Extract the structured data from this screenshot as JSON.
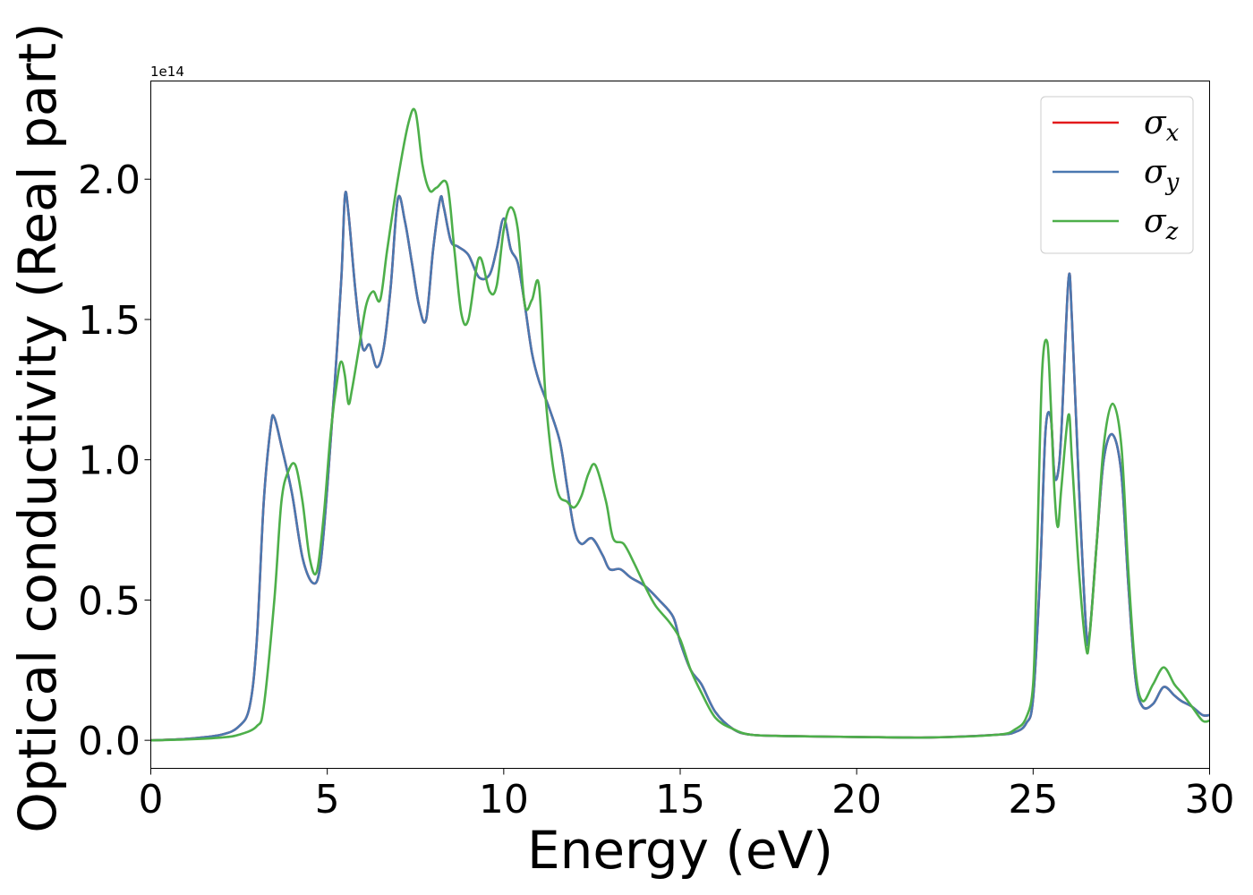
{
  "chart_data": {
    "type": "line",
    "xlabel": "Energy (eV)",
    "ylabel": "Optical conductivity (Real part)",
    "offset_text": "1e14",
    "xlim": [
      0,
      30
    ],
    "ylim": [
      -0.1,
      2.35
    ],
    "y_scale_factor": "1e14",
    "xticks": [
      0,
      5,
      10,
      15,
      20,
      25,
      30
    ],
    "xtick_labels": [
      "0",
      "5",
      "10",
      "15",
      "20",
      "25",
      "30"
    ],
    "yticks": [
      0.0,
      0.5,
      1.0,
      1.5,
      2.0
    ],
    "ytick_labels": [
      "0.0",
      "0.5",
      "1.0",
      "1.5",
      "2.0"
    ],
    "grid": false,
    "legend_position": "top-right",
    "series": [
      {
        "name": "σx",
        "legend_base": "σ",
        "legend_sub": "x",
        "color": "#e31a1c",
        "x": [
          0,
          1,
          2,
          2.5,
          2.8,
          3.0,
          3.2,
          3.4,
          3.5,
          3.7,
          4.0,
          4.3,
          4.6,
          4.8,
          5.0,
          5.2,
          5.4,
          5.5,
          5.6,
          5.8,
          6.0,
          6.2,
          6.4,
          6.6,
          6.8,
          7.0,
          7.2,
          7.4,
          7.6,
          7.8,
          8.0,
          8.2,
          8.3,
          8.5,
          8.7,
          9.0,
          9.3,
          9.6,
          9.8,
          10.0,
          10.2,
          10.4,
          10.6,
          10.8,
          11.0,
          11.3,
          11.6,
          11.8,
          12.0,
          12.2,
          12.5,
          12.8,
          13.0,
          13.3,
          13.6,
          14.0,
          14.4,
          14.8,
          15.0,
          15.3,
          15.6,
          16.0,
          16.5,
          17.0,
          18.0,
          20.0,
          22.0,
          24.0,
          24.5,
          24.8,
          25.0,
          25.2,
          25.35,
          25.5,
          25.6,
          25.7,
          25.8,
          26.0,
          26.1,
          26.3,
          26.5,
          26.6,
          26.8,
          27.0,
          27.25,
          27.5,
          27.7,
          27.9,
          28.1,
          28.4,
          28.7,
          29.0,
          29.2,
          29.5,
          29.8,
          30.0
        ],
        "values": [
          0.0,
          0.005,
          0.02,
          0.05,
          0.12,
          0.35,
          0.85,
          1.12,
          1.15,
          1.05,
          0.88,
          0.65,
          0.56,
          0.62,
          0.9,
          1.25,
          1.65,
          1.94,
          1.88,
          1.6,
          1.4,
          1.41,
          1.33,
          1.4,
          1.62,
          1.93,
          1.85,
          1.7,
          1.55,
          1.5,
          1.75,
          1.93,
          1.9,
          1.78,
          1.76,
          1.73,
          1.65,
          1.66,
          1.75,
          1.86,
          1.75,
          1.7,
          1.55,
          1.38,
          1.28,
          1.18,
          1.06,
          0.9,
          0.75,
          0.7,
          0.72,
          0.66,
          0.61,
          0.61,
          0.58,
          0.55,
          0.5,
          0.44,
          0.35,
          0.25,
          0.2,
          0.1,
          0.04,
          0.02,
          0.015,
          0.012,
          0.01,
          0.02,
          0.03,
          0.06,
          0.15,
          0.6,
          1.1,
          1.15,
          0.95,
          0.95,
          1.1,
          1.64,
          1.5,
          0.9,
          0.4,
          0.38,
          0.7,
          1.0,
          1.09,
          0.95,
          0.55,
          0.22,
          0.12,
          0.13,
          0.19,
          0.16,
          0.14,
          0.12,
          0.09,
          0.09
        ]
      },
      {
        "name": "σy",
        "legend_base": "σ",
        "legend_sub": "y",
        "color": "#4a78b0",
        "x": [
          0,
          1,
          2,
          2.5,
          2.8,
          3.0,
          3.2,
          3.4,
          3.5,
          3.7,
          4.0,
          4.3,
          4.6,
          4.8,
          5.0,
          5.2,
          5.4,
          5.5,
          5.6,
          5.8,
          6.0,
          6.2,
          6.4,
          6.6,
          6.8,
          7.0,
          7.2,
          7.4,
          7.6,
          7.8,
          8.0,
          8.2,
          8.3,
          8.5,
          8.7,
          9.0,
          9.3,
          9.6,
          9.8,
          10.0,
          10.2,
          10.4,
          10.6,
          10.8,
          11.0,
          11.3,
          11.6,
          11.8,
          12.0,
          12.2,
          12.5,
          12.8,
          13.0,
          13.3,
          13.6,
          14.0,
          14.4,
          14.8,
          15.0,
          15.3,
          15.6,
          16.0,
          16.5,
          17.0,
          18.0,
          20.0,
          22.0,
          24.0,
          24.5,
          24.8,
          25.0,
          25.2,
          25.35,
          25.5,
          25.6,
          25.7,
          25.8,
          26.0,
          26.1,
          26.3,
          26.5,
          26.6,
          26.8,
          27.0,
          27.25,
          27.5,
          27.7,
          27.9,
          28.1,
          28.4,
          28.7,
          29.0,
          29.2,
          29.5,
          29.8,
          30.0
        ],
        "values": [
          0.0,
          0.005,
          0.02,
          0.05,
          0.12,
          0.35,
          0.85,
          1.12,
          1.15,
          1.05,
          0.88,
          0.65,
          0.56,
          0.62,
          0.9,
          1.25,
          1.65,
          1.94,
          1.88,
          1.6,
          1.4,
          1.41,
          1.33,
          1.4,
          1.62,
          1.93,
          1.85,
          1.7,
          1.55,
          1.5,
          1.75,
          1.93,
          1.9,
          1.78,
          1.76,
          1.73,
          1.65,
          1.66,
          1.75,
          1.86,
          1.75,
          1.7,
          1.55,
          1.38,
          1.28,
          1.18,
          1.06,
          0.9,
          0.75,
          0.7,
          0.72,
          0.66,
          0.61,
          0.61,
          0.58,
          0.55,
          0.5,
          0.44,
          0.35,
          0.25,
          0.2,
          0.1,
          0.04,
          0.02,
          0.015,
          0.012,
          0.01,
          0.02,
          0.03,
          0.06,
          0.15,
          0.6,
          1.1,
          1.15,
          0.95,
          0.95,
          1.1,
          1.64,
          1.5,
          0.9,
          0.4,
          0.38,
          0.7,
          1.0,
          1.09,
          0.95,
          0.55,
          0.22,
          0.12,
          0.13,
          0.19,
          0.16,
          0.14,
          0.12,
          0.09,
          0.09
        ]
      },
      {
        "name": "σz",
        "legend_base": "σ",
        "legend_sub": "z",
        "color": "#4daf4a",
        "x": [
          0,
          1,
          2,
          2.5,
          3.0,
          3.2,
          3.5,
          3.7,
          3.9,
          4.1,
          4.3,
          4.5,
          4.7,
          4.9,
          5.1,
          5.3,
          5.4,
          5.5,
          5.6,
          5.7,
          5.9,
          6.1,
          6.3,
          6.5,
          6.7,
          7.0,
          7.3,
          7.5,
          7.7,
          7.9,
          8.1,
          8.4,
          8.6,
          8.8,
          9.0,
          9.3,
          9.6,
          9.8,
          10.0,
          10.2,
          10.4,
          10.6,
          10.8,
          11.0,
          11.2,
          11.5,
          11.8,
          12.0,
          12.2,
          12.4,
          12.6,
          12.9,
          13.1,
          13.4,
          13.7,
          14.0,
          14.3,
          14.7,
          15.0,
          15.3,
          15.6,
          16.0,
          16.5,
          17.0,
          18.0,
          20.0,
          22.0,
          24.0,
          24.5,
          24.8,
          25.0,
          25.1,
          25.25,
          25.4,
          25.5,
          25.6,
          25.7,
          25.8,
          26.0,
          26.1,
          26.3,
          26.5,
          26.6,
          26.8,
          27.0,
          27.25,
          27.5,
          27.7,
          27.9,
          28.1,
          28.4,
          28.7,
          29.0,
          29.2,
          29.5,
          29.8,
          30.0
        ],
        "values": [
          0.0,
          0.003,
          0.01,
          0.02,
          0.05,
          0.12,
          0.5,
          0.85,
          0.96,
          0.98,
          0.85,
          0.65,
          0.6,
          0.8,
          1.1,
          1.3,
          1.35,
          1.3,
          1.2,
          1.25,
          1.4,
          1.55,
          1.6,
          1.57,
          1.75,
          2.0,
          2.2,
          2.24,
          2.05,
          1.96,
          1.97,
          1.98,
          1.75,
          1.52,
          1.5,
          1.72,
          1.6,
          1.62,
          1.82,
          1.9,
          1.82,
          1.55,
          1.57,
          1.62,
          1.2,
          0.9,
          0.85,
          0.83,
          0.87,
          0.95,
          0.98,
          0.85,
          0.72,
          0.7,
          0.63,
          0.55,
          0.48,
          0.42,
          0.36,
          0.25,
          0.17,
          0.08,
          0.04,
          0.02,
          0.015,
          0.012,
          0.01,
          0.02,
          0.04,
          0.08,
          0.2,
          0.6,
          1.3,
          1.42,
          1.2,
          0.9,
          0.76,
          0.9,
          1.16,
          1.0,
          0.6,
          0.33,
          0.37,
          0.7,
          1.05,
          1.2,
          1.05,
          0.6,
          0.25,
          0.14,
          0.2,
          0.26,
          0.2,
          0.17,
          0.12,
          0.07,
          0.07
        ]
      }
    ]
  }
}
